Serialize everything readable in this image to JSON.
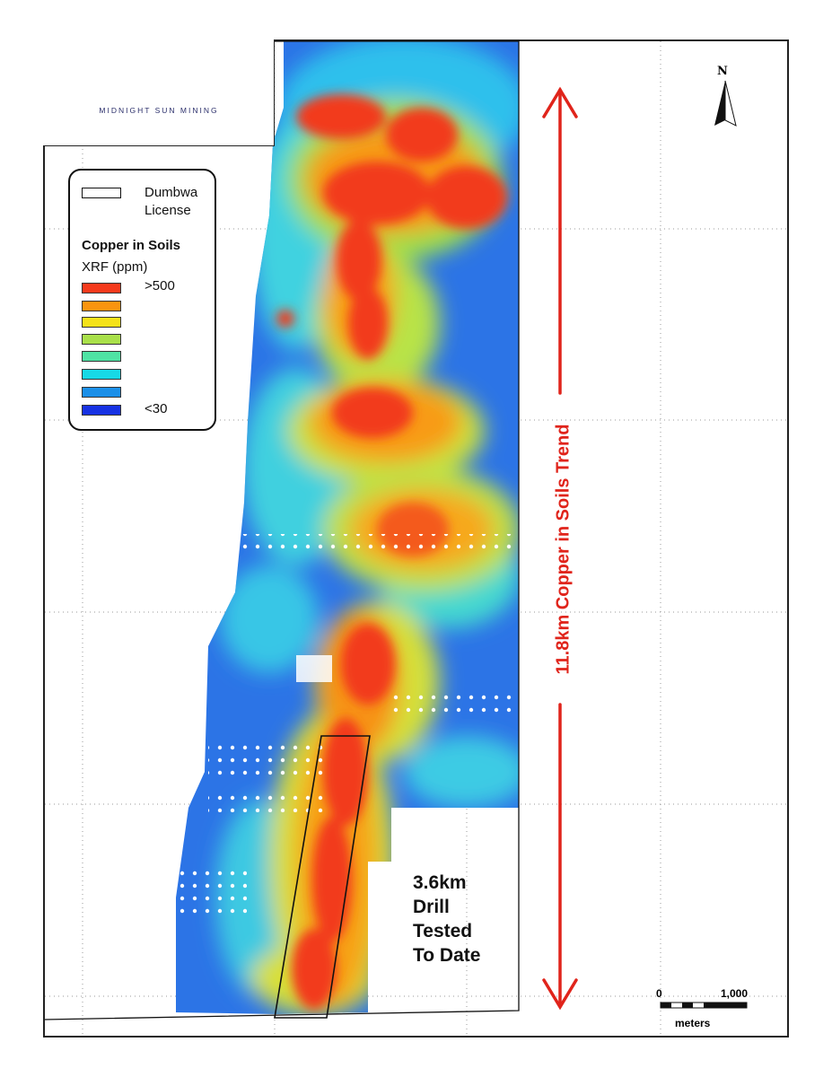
{
  "logo": {
    "company": "MIDNIGHT SUN MINING",
    "brand_color": "#2b2f6b",
    "accent_color": "#d9822b"
  },
  "legend": {
    "license_label_line1": "Dumbwa",
    "license_label_line2": "License",
    "title": "Copper in Soils",
    "subtitle": "XRF (ppm)",
    "high_label": ">500",
    "low_label": "<30",
    "swatches": [
      "#f53a1c",
      "#f9940f",
      "#f5e21a",
      "#a9e04a",
      "#4fe3a4",
      "#17d9e6",
      "#1b8fe8",
      "#1732e3"
    ]
  },
  "annotations": {
    "trend_label": "11.8km Copper in Soils Trend",
    "drill_line1": "3.6km",
    "drill_line2": "Drill",
    "drill_line3": "Tested",
    "drill_line4": "To Date",
    "trend_color": "#e0241b"
  },
  "scale_bar": {
    "start": "0",
    "end": "1,000",
    "unit": "meters"
  },
  "north_arrow": {
    "label": "N"
  }
}
